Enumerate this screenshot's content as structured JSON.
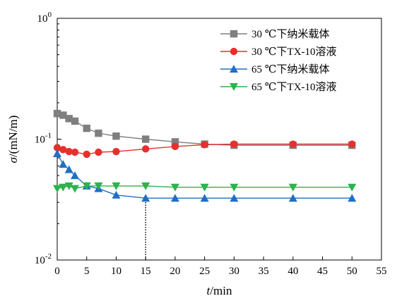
{
  "chart_data": {
    "type": "line",
    "title": "",
    "xlabel": {
      "italic": "t",
      "rest": "/min"
    },
    "ylabel": {
      "italic": "σ",
      "rest": "/(mN/m)"
    },
    "y_scale": "log",
    "xlim": [
      0,
      55
    ],
    "ylim": [
      0.01,
      1
    ],
    "x_ticks": [
      0,
      5,
      10,
      15,
      20,
      25,
      30,
      35,
      40,
      45,
      50,
      55
    ],
    "y_ticks": [
      {
        "value": 0.01,
        "base": "10",
        "exp": "-2"
      },
      {
        "value": 0.1,
        "base": "10",
        "exp": "-1"
      },
      {
        "value": 1,
        "base": "10",
        "exp": "0"
      }
    ],
    "grid": false,
    "legend_position": "top-right",
    "annotations": [
      {
        "type": "vertical-dotted-line",
        "x": 15,
        "y_from": 0.01,
        "y_to": 0.0325
      }
    ],
    "series": [
      {
        "name": "30 ℃下纳米载体",
        "color": "#7f7f7f",
        "marker": "square",
        "x": [
          0,
          1,
          2,
          3,
          5,
          7,
          10,
          15,
          20,
          25,
          30,
          40,
          50
        ],
        "y": [
          0.163,
          0.158,
          0.148,
          0.141,
          0.123,
          0.112,
          0.106,
          0.1,
          0.095,
          0.091,
          0.089,
          0.089,
          0.089
        ]
      },
      {
        "name": "30 ℃下TX-10溶液",
        "color": "#e5312d",
        "marker": "circle",
        "x": [
          0,
          1,
          2,
          3,
          5,
          7,
          10,
          15,
          20,
          25,
          30,
          40,
          50
        ],
        "y": [
          0.085,
          0.082,
          0.079,
          0.078,
          0.075,
          0.078,
          0.079,
          0.083,
          0.087,
          0.09,
          0.091,
          0.091,
          0.091
        ]
      },
      {
        "name": "65 ℃下纳米载体",
        "color": "#1f6fc5",
        "marker": "triangle-up",
        "x": [
          0,
          1,
          2,
          3,
          5,
          7,
          10,
          15,
          20,
          25,
          30,
          40,
          50
        ],
        "y": [
          0.076,
          0.062,
          0.056,
          0.05,
          0.041,
          0.039,
          0.0345,
          0.0325,
          0.0325,
          0.0325,
          0.0325,
          0.0325,
          0.0325
        ]
      },
      {
        "name": "65 ℃下TX-10溶液",
        "color": "#2eb24d",
        "marker": "triangle-down",
        "x": [
          0,
          1,
          2,
          3,
          5,
          7,
          10,
          15,
          20,
          25,
          30,
          40,
          50
        ],
        "y": [
          0.039,
          0.04,
          0.041,
          0.039,
          0.041,
          0.041,
          0.041,
          0.041,
          0.04,
          0.04,
          0.04,
          0.04,
          0.04
        ]
      }
    ]
  }
}
